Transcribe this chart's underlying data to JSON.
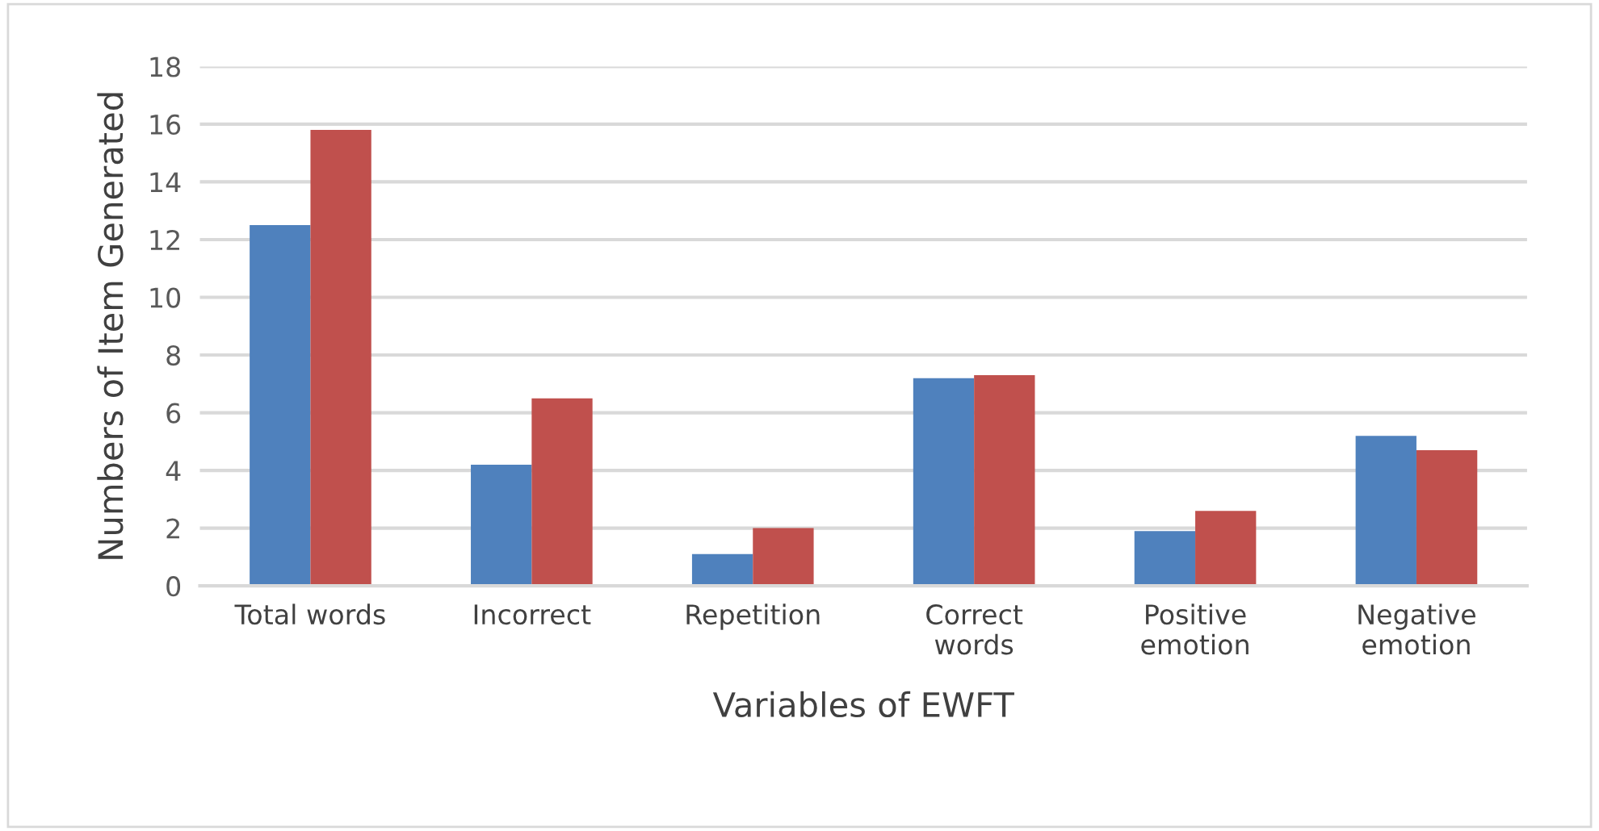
{
  "chart_data": {
    "type": "bar",
    "xlabel": "Variables of EWFT",
    "ylabel": "Numbers of Item Generated",
    "categories": [
      "Total words",
      "Incorrect",
      "Repetition",
      "Correct\nwords",
      "Positive\nemotion",
      "Negative\nemotion"
    ],
    "series": [
      {
        "color": "#4f81bd",
        "values": [
          12.5,
          4.2,
          1.1,
          7.2,
          1.9,
          5.2
        ]
      },
      {
        "color": "#c0504d",
        "values": [
          15.8,
          6.5,
          2.0,
          7.3,
          2.6,
          4.7
        ]
      }
    ],
    "ylim": [
      0,
      18
    ],
    "yticks": [
      0,
      2,
      4,
      6,
      8,
      10,
      12,
      14,
      16,
      18
    ],
    "grid": "y",
    "legend": false
  }
}
